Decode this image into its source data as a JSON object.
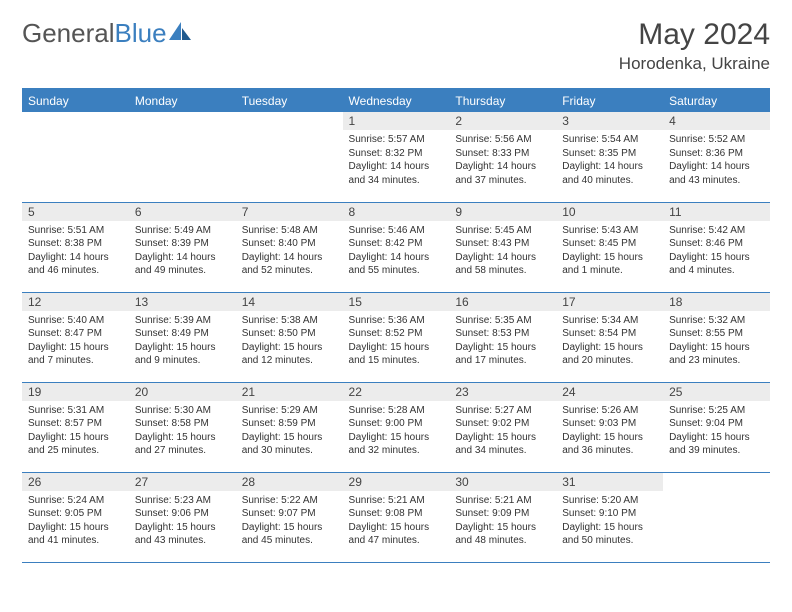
{
  "logo": {
    "part1": "General",
    "part2": "Blue"
  },
  "title": "May 2024",
  "location": "Horodenka, Ukraine",
  "colors": {
    "accent": "#3b7fbf",
    "header_text": "#ffffff",
    "daynum_bg": "#ececec",
    "text": "#333333",
    "logo_gray": "#555555"
  },
  "day_headers": [
    "Sunday",
    "Monday",
    "Tuesday",
    "Wednesday",
    "Thursday",
    "Friday",
    "Saturday"
  ],
  "weeks": [
    [
      {
        "n": "",
        "sunrise": "",
        "sunset": "",
        "daylight": ""
      },
      {
        "n": "",
        "sunrise": "",
        "sunset": "",
        "daylight": ""
      },
      {
        "n": "",
        "sunrise": "",
        "sunset": "",
        "daylight": ""
      },
      {
        "n": "1",
        "sunrise": "Sunrise: 5:57 AM",
        "sunset": "Sunset: 8:32 PM",
        "daylight": "Daylight: 14 hours and 34 minutes."
      },
      {
        "n": "2",
        "sunrise": "Sunrise: 5:56 AM",
        "sunset": "Sunset: 8:33 PM",
        "daylight": "Daylight: 14 hours and 37 minutes."
      },
      {
        "n": "3",
        "sunrise": "Sunrise: 5:54 AM",
        "sunset": "Sunset: 8:35 PM",
        "daylight": "Daylight: 14 hours and 40 minutes."
      },
      {
        "n": "4",
        "sunrise": "Sunrise: 5:52 AM",
        "sunset": "Sunset: 8:36 PM",
        "daylight": "Daylight: 14 hours and 43 minutes."
      }
    ],
    [
      {
        "n": "5",
        "sunrise": "Sunrise: 5:51 AM",
        "sunset": "Sunset: 8:38 PM",
        "daylight": "Daylight: 14 hours and 46 minutes."
      },
      {
        "n": "6",
        "sunrise": "Sunrise: 5:49 AM",
        "sunset": "Sunset: 8:39 PM",
        "daylight": "Daylight: 14 hours and 49 minutes."
      },
      {
        "n": "7",
        "sunrise": "Sunrise: 5:48 AM",
        "sunset": "Sunset: 8:40 PM",
        "daylight": "Daylight: 14 hours and 52 minutes."
      },
      {
        "n": "8",
        "sunrise": "Sunrise: 5:46 AM",
        "sunset": "Sunset: 8:42 PM",
        "daylight": "Daylight: 14 hours and 55 minutes."
      },
      {
        "n": "9",
        "sunrise": "Sunrise: 5:45 AM",
        "sunset": "Sunset: 8:43 PM",
        "daylight": "Daylight: 14 hours and 58 minutes."
      },
      {
        "n": "10",
        "sunrise": "Sunrise: 5:43 AM",
        "sunset": "Sunset: 8:45 PM",
        "daylight": "Daylight: 15 hours and 1 minute."
      },
      {
        "n": "11",
        "sunrise": "Sunrise: 5:42 AM",
        "sunset": "Sunset: 8:46 PM",
        "daylight": "Daylight: 15 hours and 4 minutes."
      }
    ],
    [
      {
        "n": "12",
        "sunrise": "Sunrise: 5:40 AM",
        "sunset": "Sunset: 8:47 PM",
        "daylight": "Daylight: 15 hours and 7 minutes."
      },
      {
        "n": "13",
        "sunrise": "Sunrise: 5:39 AM",
        "sunset": "Sunset: 8:49 PM",
        "daylight": "Daylight: 15 hours and 9 minutes."
      },
      {
        "n": "14",
        "sunrise": "Sunrise: 5:38 AM",
        "sunset": "Sunset: 8:50 PM",
        "daylight": "Daylight: 15 hours and 12 minutes."
      },
      {
        "n": "15",
        "sunrise": "Sunrise: 5:36 AM",
        "sunset": "Sunset: 8:52 PM",
        "daylight": "Daylight: 15 hours and 15 minutes."
      },
      {
        "n": "16",
        "sunrise": "Sunrise: 5:35 AM",
        "sunset": "Sunset: 8:53 PM",
        "daylight": "Daylight: 15 hours and 17 minutes."
      },
      {
        "n": "17",
        "sunrise": "Sunrise: 5:34 AM",
        "sunset": "Sunset: 8:54 PM",
        "daylight": "Daylight: 15 hours and 20 minutes."
      },
      {
        "n": "18",
        "sunrise": "Sunrise: 5:32 AM",
        "sunset": "Sunset: 8:55 PM",
        "daylight": "Daylight: 15 hours and 23 minutes."
      }
    ],
    [
      {
        "n": "19",
        "sunrise": "Sunrise: 5:31 AM",
        "sunset": "Sunset: 8:57 PM",
        "daylight": "Daylight: 15 hours and 25 minutes."
      },
      {
        "n": "20",
        "sunrise": "Sunrise: 5:30 AM",
        "sunset": "Sunset: 8:58 PM",
        "daylight": "Daylight: 15 hours and 27 minutes."
      },
      {
        "n": "21",
        "sunrise": "Sunrise: 5:29 AM",
        "sunset": "Sunset: 8:59 PM",
        "daylight": "Daylight: 15 hours and 30 minutes."
      },
      {
        "n": "22",
        "sunrise": "Sunrise: 5:28 AM",
        "sunset": "Sunset: 9:00 PM",
        "daylight": "Daylight: 15 hours and 32 minutes."
      },
      {
        "n": "23",
        "sunrise": "Sunrise: 5:27 AM",
        "sunset": "Sunset: 9:02 PM",
        "daylight": "Daylight: 15 hours and 34 minutes."
      },
      {
        "n": "24",
        "sunrise": "Sunrise: 5:26 AM",
        "sunset": "Sunset: 9:03 PM",
        "daylight": "Daylight: 15 hours and 36 minutes."
      },
      {
        "n": "25",
        "sunrise": "Sunrise: 5:25 AM",
        "sunset": "Sunset: 9:04 PM",
        "daylight": "Daylight: 15 hours and 39 minutes."
      }
    ],
    [
      {
        "n": "26",
        "sunrise": "Sunrise: 5:24 AM",
        "sunset": "Sunset: 9:05 PM",
        "daylight": "Daylight: 15 hours and 41 minutes."
      },
      {
        "n": "27",
        "sunrise": "Sunrise: 5:23 AM",
        "sunset": "Sunset: 9:06 PM",
        "daylight": "Daylight: 15 hours and 43 minutes."
      },
      {
        "n": "28",
        "sunrise": "Sunrise: 5:22 AM",
        "sunset": "Sunset: 9:07 PM",
        "daylight": "Daylight: 15 hours and 45 minutes."
      },
      {
        "n": "29",
        "sunrise": "Sunrise: 5:21 AM",
        "sunset": "Sunset: 9:08 PM",
        "daylight": "Daylight: 15 hours and 47 minutes."
      },
      {
        "n": "30",
        "sunrise": "Sunrise: 5:21 AM",
        "sunset": "Sunset: 9:09 PM",
        "daylight": "Daylight: 15 hours and 48 minutes."
      },
      {
        "n": "31",
        "sunrise": "Sunrise: 5:20 AM",
        "sunset": "Sunset: 9:10 PM",
        "daylight": "Daylight: 15 hours and 50 minutes."
      },
      {
        "n": "",
        "sunrise": "",
        "sunset": "",
        "daylight": ""
      }
    ]
  ]
}
